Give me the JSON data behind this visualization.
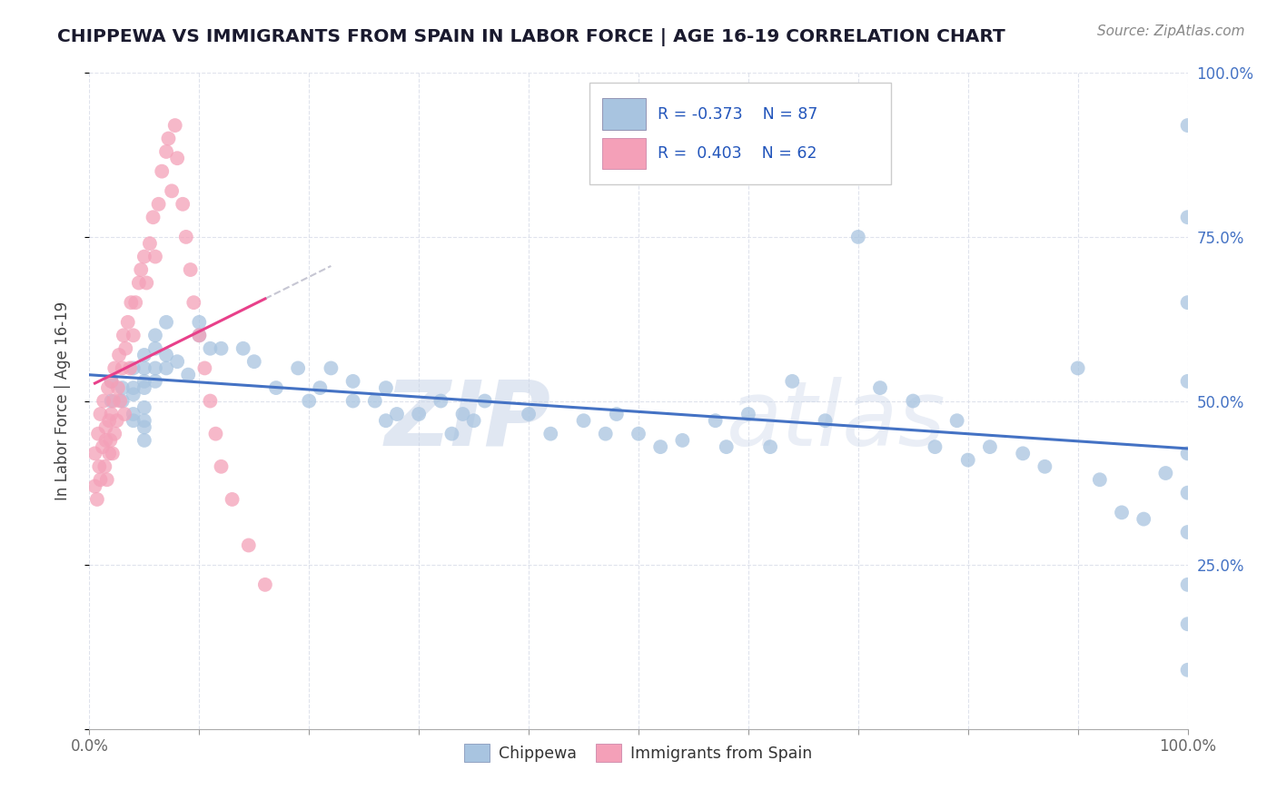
{
  "title": "CHIPPEWA VS IMMIGRANTS FROM SPAIN IN LABOR FORCE | AGE 16-19 CORRELATION CHART",
  "source_text": "Source: ZipAtlas.com",
  "ylabel": "In Labor Force | Age 16-19",
  "legend_labels": [
    "Chippewa",
    "Immigrants from Spain"
  ],
  "r_chippewa": -0.373,
  "n_chippewa": 87,
  "r_spain": 0.403,
  "n_spain": 62,
  "watermark_text": "ZIPatlas",
  "background_color": "#ffffff",
  "chippewa_color": "#a8c4e0",
  "spain_color": "#f4a0b8",
  "chippewa_line_color": "#4472c4",
  "spain_line_color": "#e8408a",
  "title_color": "#1a1a2e",
  "source_color": "#888888",
  "tick_color_right": "#4472c4",
  "tick_color_bottom": "#666666",
  "grid_color": "#d8dce8",
  "legend_border_color": "#cccccc",
  "xmin": 0.0,
  "xmax": 1.0,
  "ymin": 0.0,
  "ymax": 1.0,
  "chippewa_x": [
    0.02,
    0.02,
    0.03,
    0.03,
    0.04,
    0.04,
    0.04,
    0.04,
    0.04,
    0.05,
    0.05,
    0.05,
    0.05,
    0.05,
    0.05,
    0.05,
    0.05,
    0.06,
    0.06,
    0.06,
    0.06,
    0.07,
    0.07,
    0.07,
    0.08,
    0.09,
    0.1,
    0.1,
    0.11,
    0.12,
    0.14,
    0.15,
    0.17,
    0.19,
    0.2,
    0.21,
    0.22,
    0.24,
    0.24,
    0.26,
    0.27,
    0.27,
    0.28,
    0.3,
    0.32,
    0.33,
    0.34,
    0.35,
    0.36,
    0.4,
    0.42,
    0.45,
    0.47,
    0.48,
    0.5,
    0.52,
    0.54,
    0.57,
    0.58,
    0.6,
    0.62,
    0.64,
    0.67,
    0.7,
    0.72,
    0.75,
    0.77,
    0.79,
    0.8,
    0.82,
    0.85,
    0.87,
    0.9,
    0.92,
    0.94,
    0.96,
    0.98,
    1.0,
    1.0,
    1.0,
    1.0,
    1.0,
    1.0,
    1.0,
    1.0,
    1.0,
    1.0
  ],
  "chippewa_y": [
    0.5,
    0.53,
    0.5,
    0.52,
    0.47,
    0.48,
    0.51,
    0.52,
    0.55,
    0.44,
    0.46,
    0.47,
    0.49,
    0.52,
    0.53,
    0.55,
    0.57,
    0.53,
    0.55,
    0.58,
    0.6,
    0.55,
    0.57,
    0.62,
    0.56,
    0.54,
    0.6,
    0.62,
    0.58,
    0.58,
    0.58,
    0.56,
    0.52,
    0.55,
    0.5,
    0.52,
    0.55,
    0.5,
    0.53,
    0.5,
    0.47,
    0.52,
    0.48,
    0.48,
    0.5,
    0.45,
    0.48,
    0.47,
    0.5,
    0.48,
    0.45,
    0.47,
    0.45,
    0.48,
    0.45,
    0.43,
    0.44,
    0.47,
    0.43,
    0.48,
    0.43,
    0.53,
    0.47,
    0.75,
    0.52,
    0.5,
    0.43,
    0.47,
    0.41,
    0.43,
    0.42,
    0.4,
    0.55,
    0.38,
    0.33,
    0.32,
    0.39,
    0.92,
    0.78,
    0.65,
    0.53,
    0.42,
    0.36,
    0.3,
    0.22,
    0.16,
    0.09
  ],
  "spain_x": [
    0.005,
    0.005,
    0.007,
    0.008,
    0.009,
    0.01,
    0.01,
    0.012,
    0.013,
    0.014,
    0.015,
    0.015,
    0.016,
    0.017,
    0.018,
    0.018,
    0.019,
    0.02,
    0.02,
    0.021,
    0.022,
    0.023,
    0.023,
    0.025,
    0.026,
    0.027,
    0.028,
    0.03,
    0.031,
    0.032,
    0.033,
    0.035,
    0.037,
    0.038,
    0.04,
    0.042,
    0.045,
    0.047,
    0.05,
    0.052,
    0.055,
    0.058,
    0.06,
    0.063,
    0.066,
    0.07,
    0.072,
    0.075,
    0.078,
    0.08,
    0.085,
    0.088,
    0.092,
    0.095,
    0.1,
    0.105,
    0.11,
    0.115,
    0.12,
    0.13,
    0.145,
    0.16
  ],
  "spain_y": [
    0.37,
    0.42,
    0.35,
    0.45,
    0.4,
    0.38,
    0.48,
    0.43,
    0.5,
    0.4,
    0.44,
    0.46,
    0.38,
    0.52,
    0.42,
    0.47,
    0.44,
    0.48,
    0.53,
    0.42,
    0.5,
    0.45,
    0.55,
    0.47,
    0.52,
    0.57,
    0.5,
    0.55,
    0.6,
    0.48,
    0.58,
    0.62,
    0.55,
    0.65,
    0.6,
    0.65,
    0.68,
    0.7,
    0.72,
    0.68,
    0.74,
    0.78,
    0.72,
    0.8,
    0.85,
    0.88,
    0.9,
    0.82,
    0.92,
    0.87,
    0.8,
    0.75,
    0.7,
    0.65,
    0.6,
    0.55,
    0.5,
    0.45,
    0.4,
    0.35,
    0.28,
    0.22
  ],
  "spain_line_xstart": 0.005,
  "spain_line_xend": 0.16,
  "spain_dash_xend": 0.22,
  "chip_line_xstart": 0.0,
  "chip_line_xend": 1.0
}
